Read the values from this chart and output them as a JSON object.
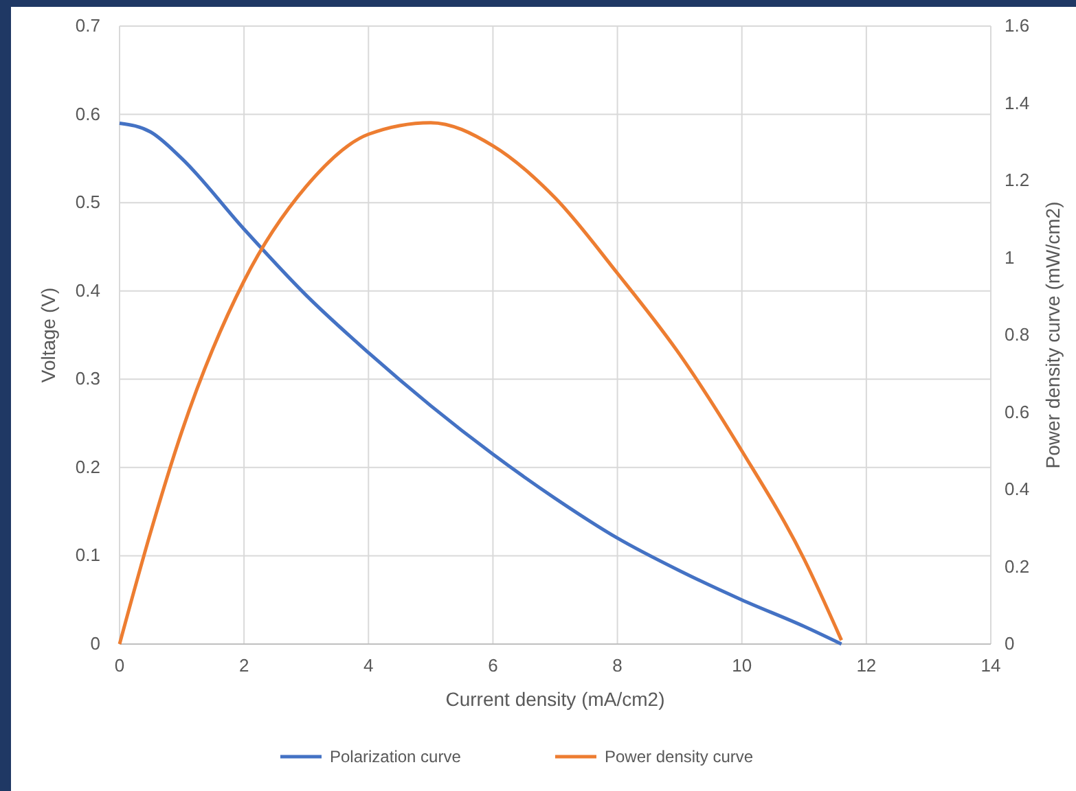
{
  "chart_data": {
    "type": "line",
    "xlabel": "Current density (mA/cm2)",
    "ylabel": "Voltage (V)",
    "y2label": "Power density curve (mW/cm2)",
    "xlim": [
      0,
      14
    ],
    "xticks": [
      0,
      2,
      4,
      6,
      8,
      10,
      12,
      14
    ],
    "ylim": [
      0,
      0.7
    ],
    "yticks": [
      0,
      0.1,
      0.2,
      0.3,
      0.4,
      0.5,
      0.6,
      0.7
    ],
    "y2lim": [
      0,
      1.6
    ],
    "y2ticks": [
      0,
      0.2,
      0.4,
      0.6,
      0.8,
      1,
      1.2,
      1.4,
      1.6
    ],
    "grid": true,
    "legend": "bottom",
    "line_style": "solid",
    "marker": "none",
    "series": [
      {
        "name": "Polarization curve",
        "color": "#4472c4",
        "x": [
          0,
          0.5,
          1,
          2,
          3,
          4,
          5,
          6,
          7,
          8,
          9,
          10,
          11,
          11.6
        ],
        "values": [
          0.59,
          0.58,
          0.55,
          0.47,
          0.395,
          0.33,
          0.27,
          0.215,
          0.165,
          0.12,
          0.083,
          0.05,
          0.02,
          0
        ]
      },
      {
        "name": "Power density curve",
        "color": "#ed7d31",
        "axis": "y2",
        "x": [
          0,
          0.5,
          1,
          2,
          3,
          4,
          5,
          6,
          7,
          8,
          9,
          10,
          11,
          11.6
        ],
        "values": [
          0,
          0.29,
          0.55,
          0.94,
          1.185,
          1.32,
          1.35,
          1.29,
          1.155,
          0.96,
          0.75,
          0.5,
          0.22,
          0.01
        ]
      }
    ]
  }
}
